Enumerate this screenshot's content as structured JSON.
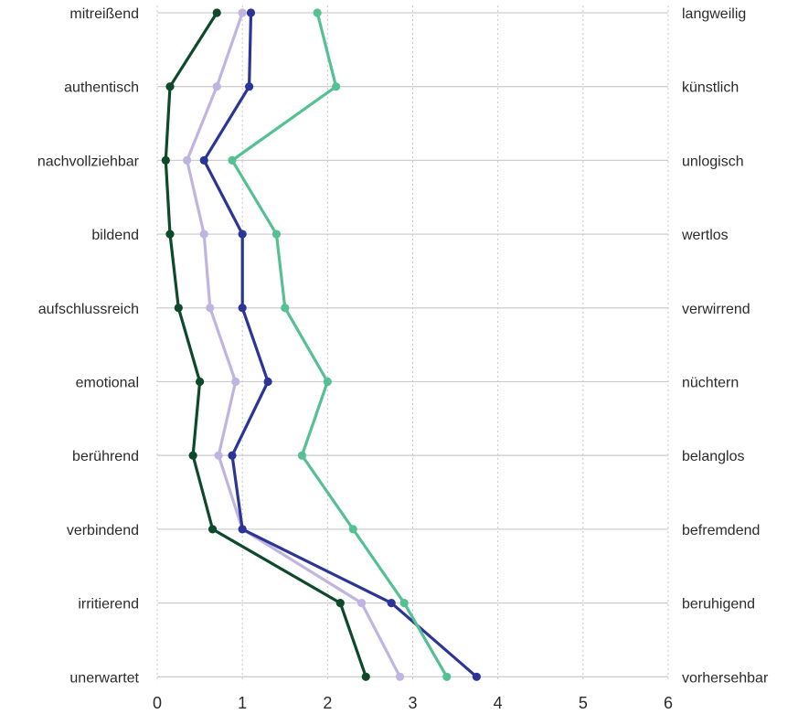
{
  "chart_data": {
    "type": "line",
    "orientation": "horizontal-profile",
    "left_labels": [
      "mitreißend",
      "authentisch",
      "nachvollziehbar",
      "bildend",
      "aufschlussreich",
      "emotional",
      "berührend",
      "verbindend",
      "irritierend",
      "unerwartet"
    ],
    "right_labels": [
      "langweilig",
      "künstlich",
      "unlogisch",
      "wertlos",
      "verwirrend",
      "nüchtern",
      "belanglos",
      "befremdend",
      "beruhigend",
      "vorhersehbar"
    ],
    "x_ticks": [
      "0",
      "1",
      "2",
      "3",
      "4",
      "5",
      "6"
    ],
    "xlim": [
      0,
      6
    ],
    "grid": "x-dotted-vertical, y-solid-horizontal",
    "series": [
      {
        "color": "#0d4a2b",
        "values": [
          0.7,
          0.15,
          0.1,
          0.15,
          0.25,
          0.5,
          0.42,
          0.65,
          2.15,
          2.45
        ]
      },
      {
        "color": "#c0b4e0",
        "values": [
          1.0,
          0.7,
          0.35,
          0.55,
          0.62,
          0.92,
          0.72,
          1.0,
          2.4,
          2.85
        ]
      },
      {
        "color": "#2a3597",
        "values": [
          1.1,
          1.08,
          0.55,
          1.0,
          1.0,
          1.3,
          0.88,
          1.0,
          2.75,
          3.75
        ]
      },
      {
        "color": "#55c193",
        "values": [
          1.88,
          2.1,
          0.88,
          1.4,
          1.5,
          2.0,
          1.7,
          2.3,
          2.9,
          3.4
        ]
      }
    ]
  }
}
